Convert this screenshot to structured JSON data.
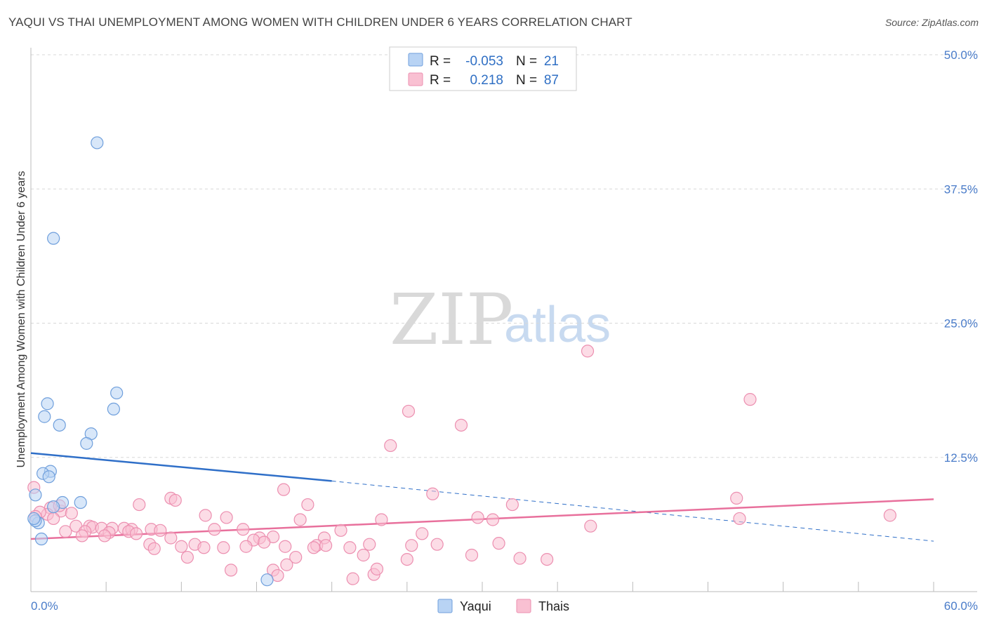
{
  "title": "YAQUI VS THAI UNEMPLOYMENT AMONG WOMEN WITH CHILDREN UNDER 6 YEARS CORRELATION CHART",
  "source": "Source: ZipAtlas.com",
  "watermark": {
    "zip": "ZIP",
    "atlas": "atlas"
  },
  "colors": {
    "yaqui_fill": "#b8d3f4",
    "yaqui_stroke": "#6f9fdc",
    "yaqui_line": "#2f6fc8",
    "thai_fill": "#f9c0d2",
    "thai_stroke": "#ec8fb0",
    "thai_line": "#e8709c",
    "grid": "#d8d8d8",
    "tick_text": "#4a7cc9"
  },
  "legend": {
    "rows": [
      {
        "r_label": "R =",
        "r_value": "-0.053",
        "n_label": "N =",
        "n_value": "21"
      },
      {
        "r_label": "R =",
        "r_value": "0.218",
        "n_label": "N =",
        "n_value": "87"
      }
    ]
  },
  "bottom_legend": {
    "series1": "Yaqui",
    "series2": "Thais"
  },
  "chart_data": {
    "type": "scatter",
    "xlabel": "",
    "ylabel": "Unemployment Among Women with Children Under 6 years",
    "xlim": [
      0,
      60
    ],
    "ylim": [
      0,
      50
    ],
    "x_tick_labels": [
      "0.0%",
      "60.0%"
    ],
    "y_tick_labels": [
      "12.5%",
      "25.0%",
      "37.5%",
      "50.0%"
    ],
    "y_ticks": [
      12.5,
      25.0,
      37.5,
      50.0
    ],
    "series": [
      {
        "name": "Yaqui",
        "r": -0.053,
        "n": 21,
        "trend": {
          "x0": 0,
          "y0": 12.9,
          "x1": 20,
          "y1": 10.3,
          "dash_x1": 60,
          "dash_y1": 4.7
        },
        "points": [
          [
            4.4,
            41.8
          ],
          [
            1.5,
            32.9
          ],
          [
            5.7,
            18.5
          ],
          [
            1.1,
            17.5
          ],
          [
            5.5,
            17.0
          ],
          [
            0.9,
            16.3
          ],
          [
            1.9,
            15.5
          ],
          [
            4.0,
            14.7
          ],
          [
            3.7,
            13.8
          ],
          [
            1.3,
            11.2
          ],
          [
            0.8,
            11.0
          ],
          [
            1.2,
            10.7
          ],
          [
            2.1,
            8.3
          ],
          [
            3.3,
            8.3
          ],
          [
            1.5,
            7.9
          ],
          [
            0.3,
            9.0
          ],
          [
            0.5,
            6.4
          ],
          [
            0.3,
            6.6
          ],
          [
            0.7,
            4.9
          ],
          [
            15.7,
            1.1
          ],
          [
            0.2,
            6.8
          ]
        ]
      },
      {
        "name": "Thais",
        "r": 0.218,
        "n": 87,
        "trend": {
          "x0": 0,
          "y0": 4.9,
          "x1": 60,
          "y1": 8.6
        },
        "points": [
          [
            37.0,
            22.4
          ],
          [
            47.8,
            17.9
          ],
          [
            25.1,
            16.8
          ],
          [
            28.6,
            15.5
          ],
          [
            23.9,
            13.6
          ],
          [
            16.8,
            9.5
          ],
          [
            26.7,
            9.1
          ],
          [
            46.9,
            8.7
          ],
          [
            9.3,
            8.7
          ],
          [
            9.6,
            8.5
          ],
          [
            7.2,
            8.1
          ],
          [
            18.4,
            8.1
          ],
          [
            32.0,
            8.1
          ],
          [
            1.3,
            7.8
          ],
          [
            2.0,
            7.5
          ],
          [
            2.7,
            7.3
          ],
          [
            1.1,
            7.2
          ],
          [
            0.6,
            7.4
          ],
          [
            11.6,
            7.1
          ],
          [
            13.0,
            6.9
          ],
          [
            29.7,
            6.9
          ],
          [
            1.5,
            6.8
          ],
          [
            17.9,
            6.7
          ],
          [
            23.3,
            6.7
          ],
          [
            30.7,
            6.7
          ],
          [
            47.1,
            6.8
          ],
          [
            57.1,
            7.1
          ],
          [
            3.0,
            6.1
          ],
          [
            3.9,
            6.1
          ],
          [
            4.1,
            6.0
          ],
          [
            4.7,
            5.9
          ],
          [
            5.4,
            5.9
          ],
          [
            6.2,
            5.9
          ],
          [
            6.7,
            5.8
          ],
          [
            8.0,
            5.8
          ],
          [
            3.6,
            5.6
          ],
          [
            5.2,
            5.5
          ],
          [
            6.5,
            5.6
          ],
          [
            7.0,
            5.4
          ],
          [
            8.6,
            5.7
          ],
          [
            2.3,
            5.6
          ],
          [
            3.4,
            5.2
          ],
          [
            4.9,
            5.2
          ],
          [
            9.3,
            5.0
          ],
          [
            12.2,
            5.8
          ],
          [
            14.1,
            5.8
          ],
          [
            20.6,
            5.7
          ],
          [
            19.5,
            5.0
          ],
          [
            26.0,
            5.4
          ],
          [
            37.2,
            6.1
          ],
          [
            15.2,
            5.0
          ],
          [
            16.1,
            5.1
          ],
          [
            14.8,
            4.8
          ],
          [
            15.5,
            4.6
          ],
          [
            7.9,
            4.4
          ],
          [
            8.2,
            4.0
          ],
          [
            10.0,
            4.2
          ],
          [
            10.9,
            4.4
          ],
          [
            11.5,
            4.1
          ],
          [
            12.8,
            4.1
          ],
          [
            14.3,
            4.2
          ],
          [
            16.9,
            4.2
          ],
          [
            19.0,
            4.3
          ],
          [
            19.6,
            4.3
          ],
          [
            21.2,
            4.1
          ],
          [
            22.5,
            4.4
          ],
          [
            25.3,
            4.3
          ],
          [
            27.0,
            4.4
          ],
          [
            31.1,
            4.5
          ],
          [
            10.4,
            3.2
          ],
          [
            18.8,
            4.1
          ],
          [
            17.6,
            3.2
          ],
          [
            22.1,
            3.4
          ],
          [
            25.0,
            3.0
          ],
          [
            29.3,
            3.4
          ],
          [
            32.5,
            3.1
          ],
          [
            34.3,
            3.0
          ],
          [
            13.3,
            2.0
          ],
          [
            16.1,
            2.0
          ],
          [
            17.0,
            2.5
          ],
          [
            22.8,
            1.6
          ],
          [
            23.0,
            2.1
          ],
          [
            16.4,
            1.5
          ],
          [
            21.4,
            1.2
          ],
          [
            0.2,
            9.7
          ],
          [
            0.3,
            7.0
          ],
          [
            1.9,
            8.0
          ]
        ]
      }
    ]
  }
}
